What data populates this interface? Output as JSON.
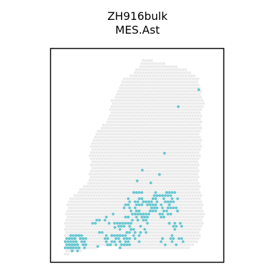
{
  "chart_data": {
    "type": "scatter",
    "title": "ZH916bulk",
    "subtitle": "MES.Ast",
    "xlabel": "",
    "ylabel": "",
    "axes_visible": false,
    "grid": false,
    "legend": "none",
    "x_range": [
      0,
      100
    ],
    "y_range": [
      0,
      100
    ],
    "background_spot_color": "#ebebeb",
    "highlight_spot_color": "#67c6d0",
    "frame_color": "#000000",
    "tissue_outline_lower": [
      [
        8,
        3
      ],
      [
        12,
        4
      ],
      [
        18,
        5
      ],
      [
        24,
        6
      ],
      [
        30,
        7
      ],
      [
        36,
        7
      ],
      [
        42,
        6
      ],
      [
        48,
        5
      ],
      [
        55,
        5
      ],
      [
        62,
        5
      ],
      [
        68,
        5
      ],
      [
        74,
        5
      ],
      [
        80,
        6
      ],
      [
        84,
        8
      ],
      [
        86,
        11
      ],
      [
        88,
        16
      ],
      [
        89,
        22
      ],
      [
        88,
        28
      ],
      [
        87,
        34
      ],
      [
        86,
        40
      ],
      [
        86,
        46
      ]
    ],
    "tissue_outline_upper": [
      [
        86,
        46
      ],
      [
        87,
        52
      ],
      [
        88,
        56
      ],
      [
        86,
        60
      ],
      [
        88,
        64
      ],
      [
        87,
        70
      ],
      [
        89,
        74
      ],
      [
        88,
        78
      ],
      [
        87,
        82
      ],
      [
        86,
        86
      ],
      [
        84,
        88
      ],
      [
        80,
        90
      ],
      [
        74,
        92
      ],
      [
        68,
        93
      ],
      [
        62,
        94
      ],
      [
        58,
        95
      ],
      [
        55,
        96
      ],
      [
        53,
        96
      ],
      [
        52,
        94
      ],
      [
        50,
        91
      ],
      [
        46,
        88
      ],
      [
        42,
        86
      ],
      [
        40,
        84
      ],
      [
        38,
        80
      ],
      [
        35,
        76
      ],
      [
        34,
        71
      ],
      [
        32,
        66
      ],
      [
        29,
        63
      ],
      [
        25,
        60
      ],
      [
        23,
        56
      ],
      [
        22,
        50
      ],
      [
        23,
        44
      ],
      [
        22,
        40
      ],
      [
        20,
        36
      ],
      [
        16,
        34
      ],
      [
        13,
        31
      ],
      [
        10,
        29
      ],
      [
        9,
        24
      ],
      [
        8,
        18
      ],
      [
        7,
        12
      ],
      [
        8,
        6
      ]
    ],
    "highlight_clusters": [
      {
        "cx": 14,
        "cy": 9,
        "rx": 7,
        "ry": 4,
        "count": 75
      },
      {
        "cx": 38,
        "cy": 9,
        "rx": 9,
        "ry": 4,
        "count": 45
      },
      {
        "cx": 52,
        "cy": 26,
        "rx": 10,
        "ry": 7,
        "count": 60
      },
      {
        "cx": 66,
        "cy": 27,
        "rx": 9,
        "ry": 7,
        "count": 55
      },
      {
        "cx": 48,
        "cy": 15,
        "rx": 10,
        "ry": 7,
        "count": 30
      },
      {
        "cx": 70,
        "cy": 13,
        "rx": 9,
        "ry": 6,
        "count": 20
      },
      {
        "cx": 33,
        "cy": 18,
        "rx": 9,
        "ry": 6,
        "count": 15
      }
    ],
    "highlight_isolated": [
      [
        86,
        81
      ],
      [
        74,
        73
      ],
      [
        66,
        51
      ],
      [
        37,
        16
      ],
      [
        53,
        43
      ],
      [
        63,
        41
      ],
      [
        50,
        38
      ],
      [
        58,
        37
      ],
      [
        27,
        7
      ]
    ]
  }
}
